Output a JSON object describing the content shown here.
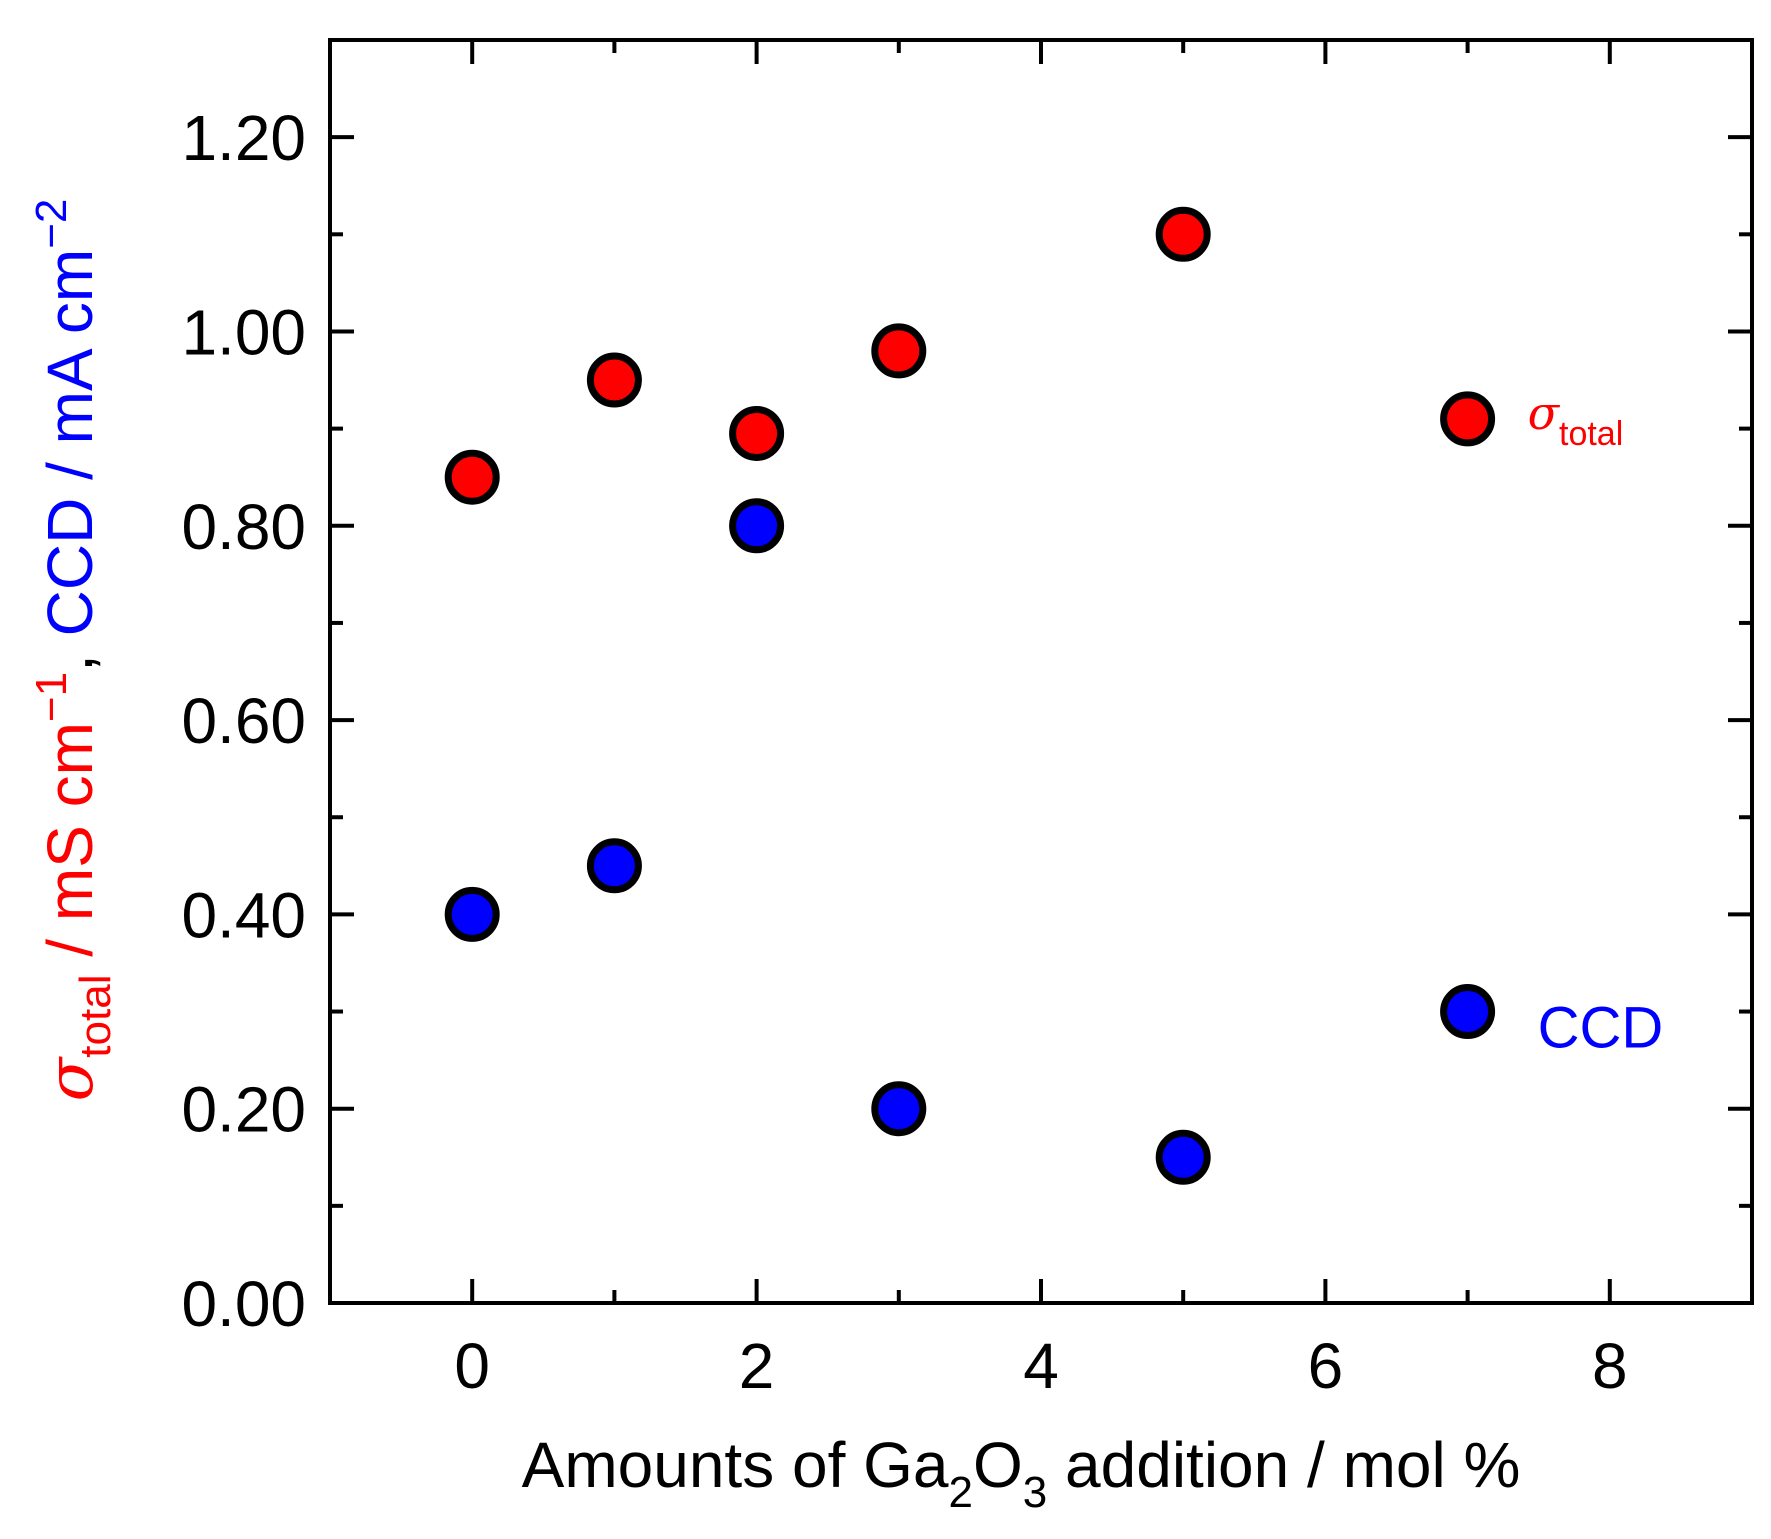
{
  "chart_data": {
    "type": "scatter",
    "title": "",
    "xlabel": {
      "prefix": "Amounts of Ga",
      "sub1": "2",
      "mid": "O",
      "sub2": "3",
      "suffix": " addition / mol %"
    },
    "ylabel": {
      "sigma": "σ",
      "sigma_sub": "total",
      "part1": " / mS cm",
      "part1_sup": "−1",
      "comma": ", ",
      "part2": "CCD / mA cm",
      "part2_sup": "−2"
    },
    "xlim": [
      -1,
      9
    ],
    "ylim": [
      0,
      1.3
    ],
    "xticks": [
      0,
      2,
      4,
      6,
      8
    ],
    "xtick_labels": [
      "0",
      "2",
      "4",
      "6",
      "8"
    ],
    "yticks": [
      0,
      0.2,
      0.4,
      0.6,
      0.8,
      1.0,
      1.2
    ],
    "ytick_labels": [
      "0.00",
      "0.20",
      "0.40",
      "0.60",
      "0.80",
      "1.00",
      "1.20"
    ],
    "series": [
      {
        "name": "σ_total",
        "label_main": "σ",
        "label_sub": "total",
        "color": "#ff0000",
        "points": [
          {
            "x": 0,
            "y": 0.85
          },
          {
            "x": 1,
            "y": 0.95
          },
          {
            "x": 2,
            "y": 0.895
          },
          {
            "x": 3,
            "y": 0.98
          },
          {
            "x": 5,
            "y": 1.1
          },
          {
            "x": 7,
            "y": 0.91
          }
        ]
      },
      {
        "name": "CCD",
        "label_main": "CCD",
        "label_sub": "",
        "color": "#0000ff",
        "points": [
          {
            "x": 0,
            "y": 0.4
          },
          {
            "x": 1,
            "y": 0.45
          },
          {
            "x": 2,
            "y": 0.8
          },
          {
            "x": 3,
            "y": 0.2
          },
          {
            "x": 5,
            "y": 0.15
          },
          {
            "x": 7,
            "y": 0.3
          }
        ]
      }
    ]
  }
}
